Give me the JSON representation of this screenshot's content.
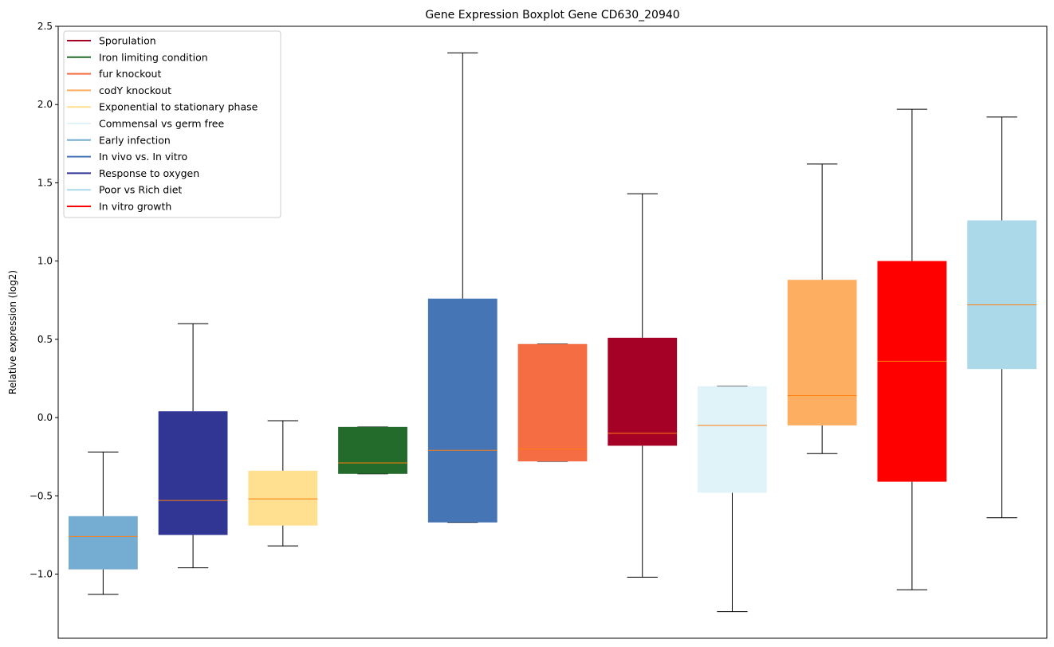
{
  "chart_data": {
    "type": "box",
    "title": "Gene Expression Boxplot Gene CD630_20940",
    "xlabel": "",
    "ylabel": "Relative expression (log2)",
    "ylim": [
      -1.41,
      2.5
    ],
    "yticks": [
      -1.0,
      -0.5,
      0.0,
      0.5,
      1.0,
      1.5,
      2.0,
      2.5
    ],
    "ytick_labels": [
      "−1.0",
      "−0.5",
      "0.0",
      "0.5",
      "1.0",
      "1.5",
      "2.0",
      "2.5"
    ],
    "grid": false,
    "legend_position": "top-left",
    "legend": [
      {
        "label": "Sporulation",
        "color": "#a50026"
      },
      {
        "label": "Iron limiting condition",
        "color": "#236b2b"
      },
      {
        "label": "fur knockout",
        "color": "#f46d43"
      },
      {
        "label": "codY knockout",
        "color": "#fdae61"
      },
      {
        "label": "Exponential to stationary phase",
        "color": "#fee090"
      },
      {
        "label": "Commensal vs germ free",
        "color": "#e0f3f8"
      },
      {
        "label": "Early infection",
        "color": "#74add1"
      },
      {
        "label": "In vivo vs. In vitro",
        "color": "#4575b4"
      },
      {
        "label": "Response to oxygen",
        "color": "#313695"
      },
      {
        "label": "Poor vs Rich diet",
        "color": "#abd9e9"
      },
      {
        "label": "In vitro growth",
        "color": "#ff0000"
      }
    ],
    "median_color": "#ff7f0e",
    "boxes": [
      {
        "name": "Early infection",
        "color": "#74add1",
        "whislo": -1.13,
        "q1": -0.97,
        "med": -0.76,
        "q3": -0.63,
        "whishi": -0.22
      },
      {
        "name": "Response to oxygen",
        "color": "#313695",
        "whislo": -0.96,
        "q1": -0.75,
        "med": -0.53,
        "q3": 0.04,
        "whishi": 0.6
      },
      {
        "name": "Exponential to stationary phase",
        "color": "#fee090",
        "whislo": -0.82,
        "q1": -0.69,
        "med": -0.52,
        "q3": -0.34,
        "whishi": -0.02
      },
      {
        "name": "Iron limiting condition",
        "color": "#236b2b",
        "whislo": -0.36,
        "q1": -0.36,
        "med": -0.29,
        "q3": -0.06,
        "whishi": -0.06
      },
      {
        "name": "In vivo vs. In vitro",
        "color": "#4575b4",
        "whislo": -0.67,
        "q1": -0.67,
        "med": -0.21,
        "q3": 0.76,
        "whishi": 2.33
      },
      {
        "name": "fur knockout",
        "color": "#f46d43",
        "whislo": -0.28,
        "q1": -0.28,
        "med": -0.2,
        "q3": 0.47,
        "whishi": 0.47
      },
      {
        "name": "Sporulation",
        "color": "#a50026",
        "whislo": -1.02,
        "q1": -0.18,
        "med": -0.1,
        "q3": 0.51,
        "whishi": 1.43
      },
      {
        "name": "Commensal vs germ free",
        "color": "#e0f3f8",
        "whislo": -1.24,
        "q1": -0.48,
        "med": -0.05,
        "q3": 0.2,
        "whishi": 0.2
      },
      {
        "name": "codY knockout",
        "color": "#fdae61",
        "whislo": -0.23,
        "q1": -0.05,
        "med": 0.14,
        "q3": 0.88,
        "whishi": 1.62
      },
      {
        "name": "In vitro growth",
        "color": "#ff0000",
        "whislo": -1.1,
        "q1": -0.41,
        "med": 0.36,
        "q3": 1.0,
        "whishi": 1.97
      },
      {
        "name": "Poor vs Rich diet",
        "color": "#abd9e9",
        "whislo": -0.64,
        "q1": 0.31,
        "med": 0.72,
        "q3": 1.26,
        "whishi": 1.92
      }
    ]
  }
}
